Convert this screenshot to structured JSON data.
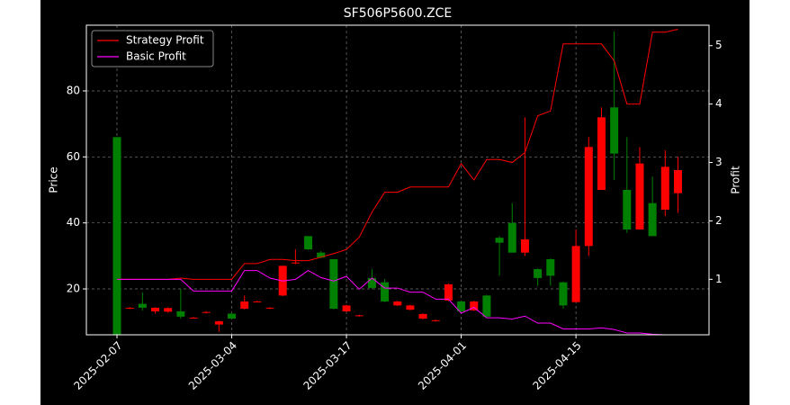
{
  "chart_data": {
    "type": "candlestick",
    "title": "SF506P5600.ZCE",
    "y_label": "Price",
    "y2_label": "Profit",
    "categories": [
      "2025-02-07",
      null,
      null,
      null,
      null,
      null,
      null,
      null,
      null,
      "2025-03-04",
      null,
      null,
      null,
      null,
      null,
      null,
      null,
      null,
      "2025-03-17",
      null,
      null,
      null,
      null,
      null,
      null,
      null,
      null,
      "2025-04-01",
      null,
      null,
      null,
      null,
      null,
      null,
      null,
      null,
      "2025-04-15",
      null,
      null,
      null,
      null,
      null,
      null,
      null,
      null
    ],
    "candles": {
      "up_color": "#008000",
      "down_color": "#ff0000",
      "open": [
        6.2,
        14.3,
        14.3,
        14.3,
        14.2,
        11.6,
        11.3,
        13,
        10.2,
        11,
        16.2,
        16.2,
        14.3,
        27,
        28,
        32,
        29.5,
        14,
        15,
        12,
        20.3,
        16.2,
        16.2,
        15,
        12.4,
        10.5,
        21.4,
        13.2,
        16.2,
        11.6,
        34,
        31,
        35,
        23.3,
        24,
        15,
        33,
        63,
        72,
        61,
        38,
        58,
        36,
        57,
        56
      ],
      "high": [
        66,
        14.5,
        19,
        14.5,
        14.4,
        20,
        11.5,
        13.3,
        10.4,
        12.8,
        18,
        16.4,
        14.5,
        27,
        32,
        36,
        31.5,
        29,
        15.2,
        12.2,
        26,
        23,
        16.4,
        15.2,
        12.6,
        10.7,
        21.6,
        16.5,
        16.4,
        18.2,
        36,
        46,
        72,
        26.2,
        29.2,
        22.2,
        38,
        66,
        75,
        98,
        66,
        63,
        54,
        62,
        60
      ],
      "low": [
        6.2,
        13.9,
        13.5,
        12.5,
        12.8,
        11,
        11,
        12.6,
        7,
        10.8,
        13.8,
        16,
        13.9,
        17.8,
        27.5,
        31.8,
        29.3,
        13.8,
        13,
        11.6,
        20,
        16,
        14.8,
        13.5,
        10.8,
        10.1,
        16.3,
        13,
        13.3,
        11.4,
        24,
        31,
        30,
        21,
        21,
        14,
        16,
        30,
        50,
        53,
        37,
        38,
        36,
        42,
        43
      ],
      "close": [
        66,
        14.1,
        15.5,
        13.2,
        13.1,
        13.2,
        11.2,
        12.8,
        9.2,
        12.5,
        14,
        16,
        14.1,
        18,
        27.8,
        36,
        31,
        29,
        13.2,
        11.8,
        23.3,
        22,
        15,
        13.7,
        11,
        10.3,
        16.5,
        16.2,
        13.5,
        18,
        35.5,
        40,
        31,
        26,
        29,
        22,
        16,
        33,
        50,
        75,
        50,
        38,
        46,
        44,
        49
      ]
    },
    "series": [
      {
        "name": "Strategy Profit",
        "color": "#ff0000",
        "axis": "y2",
        "values": [
          1,
          1,
          1,
          1,
          1,
          1.02,
          1,
          1,
          1,
          1,
          1.27,
          1.27,
          1.34,
          1.34,
          1.32,
          1.32,
          1.38,
          1.44,
          1.51,
          1.72,
          2.15,
          2.49,
          2.49,
          2.58,
          2.58,
          2.58,
          2.58,
          2.98,
          2.7,
          3.05,
          3.05,
          3.0,
          3.17,
          3.8,
          3.88,
          5.03,
          5.03,
          5.03,
          5.03,
          4.74,
          4.0,
          4.0,
          5.23,
          5.23,
          5.28
        ]
      },
      {
        "name": "Basic Profit",
        "color": "#ff00ff",
        "axis": "y2",
        "values": [
          1,
          1,
          1,
          1,
          1,
          1,
          0.8,
          0.8,
          0.8,
          0.8,
          1.15,
          1.15,
          1.02,
          0.97,
          1.0,
          1.15,
          1.03,
          0.97,
          1.05,
          0.83,
          1.02,
          0.85,
          0.85,
          0.78,
          0.78,
          0.66,
          0.66,
          0.42,
          0.52,
          0.34,
          0.34,
          0.32,
          0.37,
          0.25,
          0.25,
          0.15,
          0.15,
          0.15,
          0.17,
          0.14,
          0.08,
          0.08,
          0.06,
          0.05,
          0.05
        ]
      }
    ],
    "ylim": [
      6.1,
      99.9
    ],
    "yticks": [
      20,
      40,
      60,
      80
    ],
    "y2lim": [
      0.05,
      5.35
    ],
    "y2ticks": [
      1,
      2,
      3,
      4,
      5
    ],
    "grid": true,
    "legend": "upper left"
  }
}
